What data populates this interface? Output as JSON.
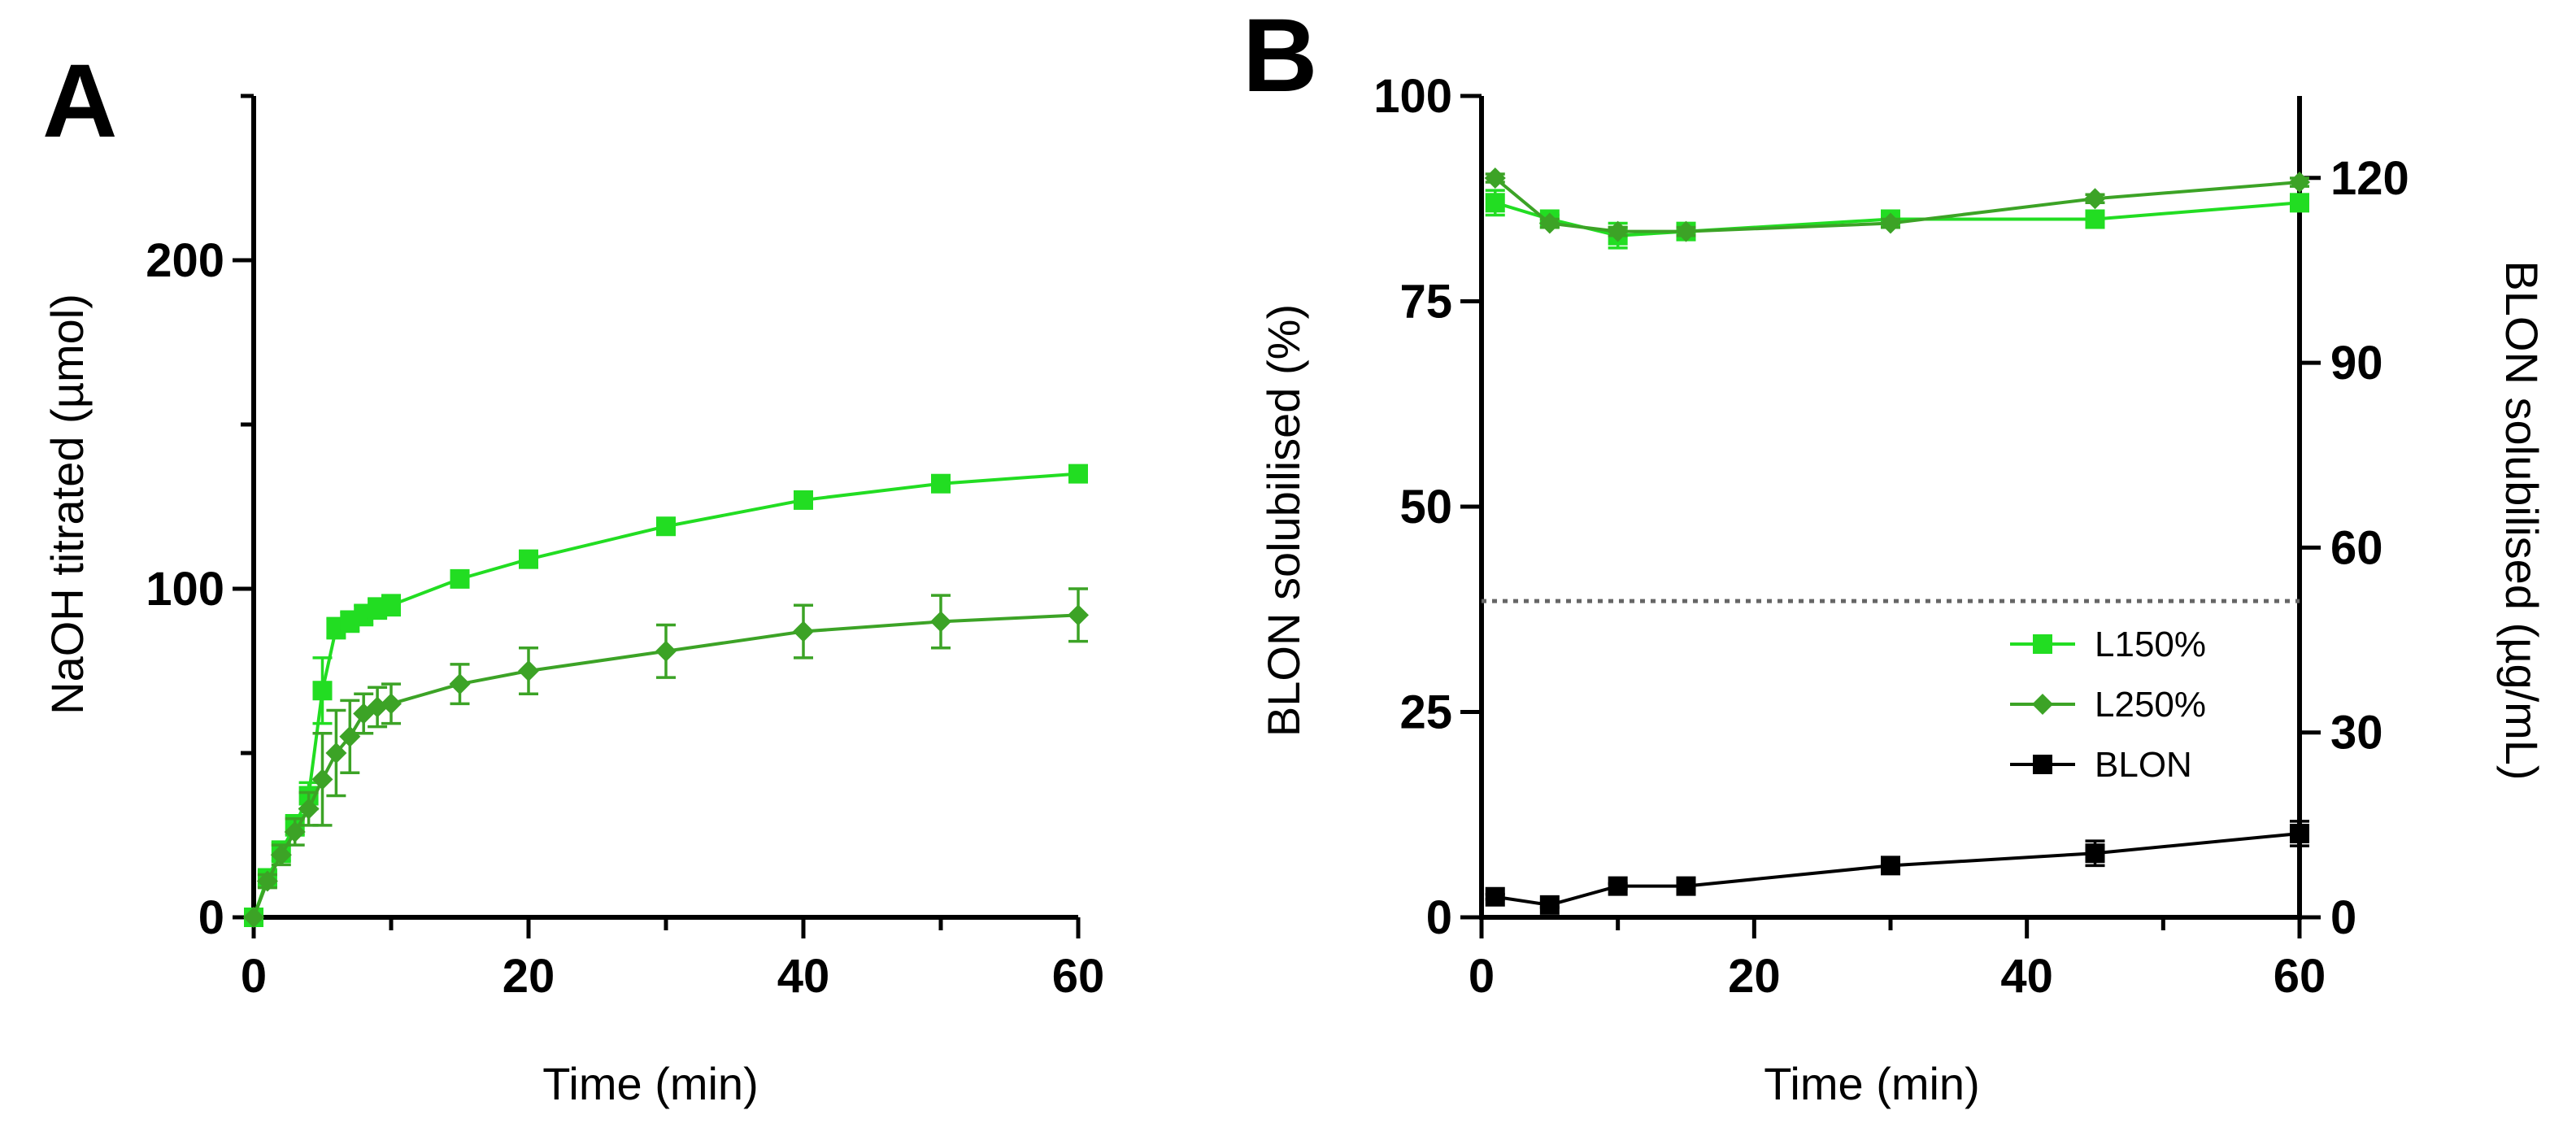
{
  "colors": {
    "L150": "#22dd22",
    "L250": "#3ca326",
    "BLON": "#000000",
    "axis": "#000000",
    "reference_line": "#666666"
  },
  "chart_data": [
    {
      "panel": "A",
      "type": "line",
      "xlabel": "Time (min)",
      "ylabel": "NaOH titrated (µmol)",
      "xlim": [
        0,
        60
      ],
      "ylim": [
        0,
        250
      ],
      "xticks": [
        0,
        20,
        40,
        60
      ],
      "yticks": [
        0,
        100,
        200
      ],
      "grid": false,
      "series": [
        {
          "key": "L150",
          "marker": "square",
          "x": [
            0,
            1,
            2,
            3,
            4,
            5,
            6,
            7,
            8,
            9,
            10,
            15,
            20,
            30,
            40,
            50,
            60
          ],
          "y": [
            0,
            12,
            20,
            28,
            37,
            69,
            88,
            90,
            92,
            94,
            95,
            103,
            109,
            119,
            127,
            132,
            135
          ],
          "err": [
            0,
            2,
            3,
            3,
            4,
            10,
            3,
            3,
            3,
            3,
            3,
            2,
            2,
            2,
            2,
            2,
            2
          ]
        },
        {
          "key": "L250",
          "marker": "diamond",
          "x": [
            0,
            1,
            2,
            3,
            4,
            5,
            6,
            7,
            8,
            9,
            10,
            15,
            20,
            30,
            40,
            50,
            60
          ],
          "y": [
            0,
            11,
            19,
            26,
            33,
            42,
            50,
            55,
            62,
            64,
            65,
            71,
            75,
            81,
            87,
            90,
            92
          ],
          "err": [
            0,
            2,
            3,
            4,
            5,
            14,
            13,
            11,
            6,
            6,
            6,
            6,
            7,
            8,
            8,
            8,
            8
          ]
        }
      ]
    },
    {
      "panel": "B",
      "type": "line",
      "xlabel": "Time (min)",
      "ylabel": "BLON solubilised (%)",
      "y2label": "BLON solubilised (µg/mL)",
      "xlim": [
        0,
        60
      ],
      "ylim": [
        0,
        100
      ],
      "y2lim": [
        0,
        133.3
      ],
      "xticks": [
        0,
        20,
        40,
        60
      ],
      "yticks": [
        0,
        25,
        50,
        75,
        100
      ],
      "y2ticks": [
        0,
        30,
        60,
        90,
        120
      ],
      "reference_line_y": 38.5,
      "grid": false,
      "legend_position": "right-middle",
      "series": [
        {
          "key": "L150",
          "name": "L150%",
          "marker": "square",
          "x": [
            1,
            5,
            10,
            15,
            30,
            45,
            60
          ],
          "y": [
            87,
            85,
            83,
            83.5,
            85,
            85,
            87
          ],
          "err": [
            1.5,
            0.5,
            1.5,
            0.5,
            1,
            1,
            1
          ]
        },
        {
          "key": "L250",
          "name": "L250%",
          "marker": "diamond",
          "x": [
            1,
            5,
            10,
            15,
            30,
            45,
            60
          ],
          "y": [
            90,
            84.5,
            83.5,
            83.5,
            84.5,
            87.5,
            89.5
          ],
          "err": [
            0.5,
            0.5,
            0.5,
            0.5,
            0.5,
            0.5,
            0.5
          ]
        },
        {
          "key": "BLON",
          "name": "BLON",
          "marker": "square",
          "x": [
            1,
            5,
            10,
            15,
            30,
            45,
            60
          ],
          "y": [
            2.5,
            1.5,
            3.8,
            3.8,
            6.3,
            7.8,
            10.2
          ],
          "err": [
            0.3,
            0.3,
            0.3,
            0.3,
            0.5,
            1.5,
            1.5
          ]
        }
      ]
    }
  ]
}
